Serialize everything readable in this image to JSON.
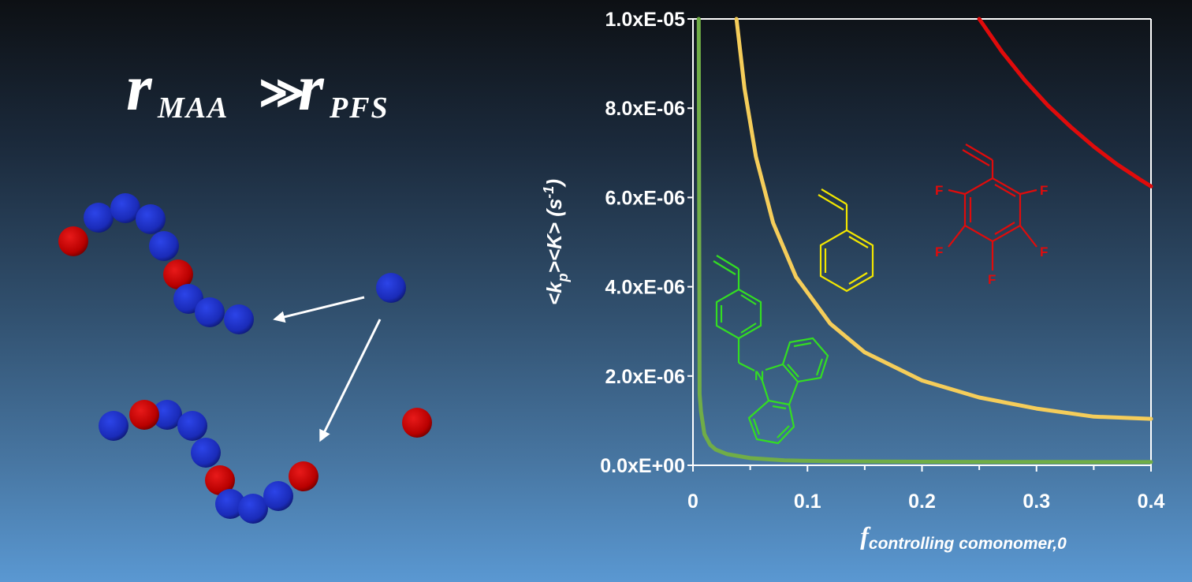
{
  "headline": {
    "r1": "r",
    "sub1": "MAA",
    "relation": "≫",
    "r2": "r",
    "sub2": "PFS"
  },
  "chart_data": {
    "type": "line",
    "xlabel_main": "f",
    "xlabel_sub": "controlling comonomer,0",
    "ylabel_parts": [
      "<k",
      "p",
      "><K> (s",
      "-1",
      ")"
    ],
    "xlim": [
      0,
      0.4
    ],
    "ylim": [
      0,
      1e-05
    ],
    "x_ticks": [
      0,
      0.1,
      0.2,
      0.3,
      0.4
    ],
    "x_tick_labels": [
      "0",
      "0.1",
      "0.2",
      "0.3",
      "0.4"
    ],
    "y_ticks": [
      0,
      2e-06,
      4e-06,
      6e-06,
      8e-06,
      1e-05
    ],
    "y_tick_labels": [
      "0.0xE+00",
      "2.0xE-06",
      "4.0xE-06",
      "6.0xE-06",
      "8.0xE-06",
      "1.0xE-05"
    ],
    "grid": false,
    "series": [
      {
        "color": "#e00b0b",
        "x": [
          0.25,
          0.27,
          0.29,
          0.31,
          0.33,
          0.35,
          0.37,
          0.39,
          0.4
        ],
        "y": [
          1e-05,
          9.26e-06,
          8.62e-06,
          8.06e-06,
          7.58e-06,
          7.14e-06,
          6.75e-06,
          6.41e-06,
          6.25e-06
        ]
      },
      {
        "color": "#f5cd5a",
        "x": [
          0.038,
          0.045,
          0.055,
          0.07,
          0.09,
          0.12,
          0.15,
          0.2,
          0.25,
          0.3,
          0.35,
          0.4
        ],
        "y": [
          1e-05,
          8.44e-06,
          6.91e-06,
          5.43e-06,
          4.22e-06,
          3.17e-06,
          2.53e-06,
          1.9e-06,
          1.52e-06,
          1.27e-06,
          1.09e-06,
          1.04e-06
        ]
      },
      {
        "color": "#70ad47",
        "x": [
          0.005,
          0.0058,
          0.007,
          0.01,
          0.015,
          0.02,
          0.03,
          0.05,
          0.08,
          0.12,
          0.2,
          0.3,
          0.4
        ],
        "y": [
          1e-05,
          1.6e-06,
          1.2e-06,
          7e-07,
          4.6e-07,
          3.5e-07,
          2.5e-07,
          1.6e-07,
          1.1e-07,
          9e-08,
          8e-08,
          7.5e-08,
          7.2e-08
        ]
      }
    ]
  },
  "molecules": {
    "red_atom_labels": [
      "F",
      "F",
      "F",
      "F",
      "F"
    ],
    "green_atom_label": "N",
    "colors": {
      "red": "#e00b0b",
      "yellow": "#f2e600",
      "green": "#33dd22"
    }
  },
  "spheres": {
    "blue": "#1c2ec8",
    "red": "#cc0000"
  },
  "colors": {
    "axis": "#ffffff",
    "arrow": "#ffffff",
    "text": "#ffffff"
  }
}
